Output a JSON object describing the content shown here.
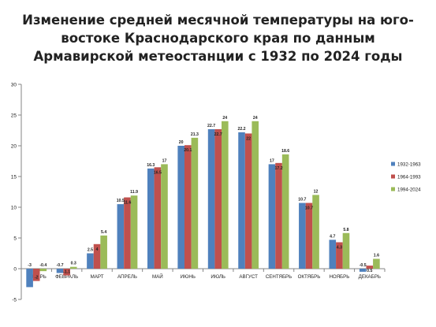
{
  "title": {
    "line1": "Изменение средней месячной температуры  на юго-",
    "line2": "востоке Краснодарского края по данным",
    "line3": "Армавирской метеостанции с 1932 по 2024 годы"
  },
  "chart_data": {
    "type": "bar",
    "categories": [
      "ЯНВАРЬ",
      "ФЕВРАЛЬ",
      "МАРТ",
      "АПРЕЛЬ",
      "МАЙ",
      "ИЮНЬ",
      "ИЮЛЬ",
      "АВГУСТ",
      "СЕНТЯБРЬ",
      "ОКТЯБРЬ",
      "НОЯБРЬ",
      "ДЕКАБРЬ"
    ],
    "series": [
      {
        "name": "1932-1963",
        "color": "#4f81bd",
        "values": [
          -3,
          -0.7,
          2.5,
          10.5,
          16.3,
          20,
          22.7,
          22.2,
          17,
          10.7,
          4.7,
          -0.5
        ]
      },
      {
        "name": "1964-1993",
        "color": "#c0504d",
        "values": [
          -2,
          -1.1,
          4,
          11.6,
          16.5,
          20.1,
          22.7,
          22,
          17.2,
          10.7,
          4.3,
          0.5
        ]
      },
      {
        "name": "1994-2024",
        "color": "#9bbb59",
        "values": [
          -0.4,
          0.3,
          5.4,
          11.9,
          17,
          21.3,
          24,
          24,
          18.6,
          12,
          5.8,
          1.6
        ]
      }
    ],
    "value_labels": [
      [
        "-3",
        "-0.7",
        "2.5",
        "10.5",
        "16.3",
        "20",
        "22.7",
        "22.2",
        "17",
        "10.7",
        "4.7",
        "-0.5"
      ],
      [
        "-2",
        "-1.1",
        "4",
        "11.6",
        "16.5",
        "20.1",
        "22.7",
        "22",
        "17.2",
        "10.7",
        "4.3",
        "0.5"
      ],
      [
        "-0.4",
        "0.3",
        "5.4",
        "11.9",
        "17",
        "21.3",
        "24",
        "24",
        "18.6",
        "12",
        "5.8",
        "1.6"
      ]
    ],
    "ylim": [
      -5,
      30
    ],
    "y_ticks": [
      -5,
      0,
      5,
      10,
      15,
      20,
      25,
      30
    ],
    "grid": false,
    "legend_position": "right"
  }
}
